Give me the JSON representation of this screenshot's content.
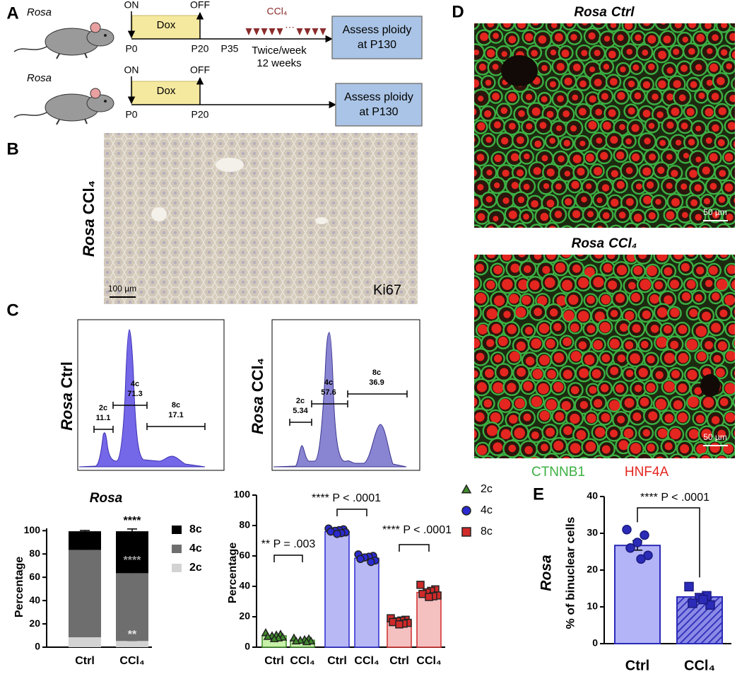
{
  "panel_labels": [
    "A",
    "B",
    "C",
    "D",
    "E"
  ],
  "schematic": {
    "rows": [
      {
        "strain": "Rosa",
        "on": "ON",
        "off": "OFF",
        "drug": "Dox",
        "timepoints": [
          "P0",
          "P20",
          "P35"
        ],
        "treatment": "CCl₄",
        "ellipsis": "···",
        "schedule": [
          "Twice/week",
          "12 weeks"
        ],
        "readout": [
          "Assess ploidy",
          "at P130"
        ]
      },
      {
        "strain": "Rosa",
        "on": "ON",
        "off": "OFF",
        "drug": "Dox",
        "timepoints": [
          "P0",
          "P20"
        ],
        "readout": [
          "Assess ploidy",
          "at P130"
        ]
      }
    ]
  },
  "ihc": {
    "label": {
      "genotype": "Rosa",
      "condition": "CCl₄"
    },
    "scale_bar": "100 µm",
    "stain": "Ki67"
  },
  "flow": [
    {
      "label": {
        "genotype": "Rosa",
        "condition": "Ctrl"
      },
      "gates": [
        {
          "name": "2c",
          "value": 11.1
        },
        {
          "name": "4c",
          "value": 71.3
        },
        {
          "name": "8c",
          "value": 17.1
        }
      ]
    },
    {
      "label": {
        "genotype": "Rosa",
        "condition": "CCl₄"
      },
      "gates": [
        {
          "name": "2c",
          "value": 5.34
        },
        {
          "name": "4c",
          "value": 57.6
        },
        {
          "name": "8c",
          "value": 36.9
        }
      ]
    }
  ],
  "if_images": {
    "panels": [
      {
        "title": {
          "genotype": "Rosa",
          "condition": "Ctrl"
        },
        "scale_bar": "50 µm"
      },
      {
        "title": {
          "genotype": "Rosa",
          "condition": "CCl₄"
        },
        "scale_bar": "50 µm"
      }
    ],
    "channels": [
      {
        "name": "CTNNB1",
        "color": "#3cb043"
      },
      {
        "name": "HNF4A",
        "color": "#e3261f"
      }
    ]
  },
  "chart_data": [
    {
      "type": "stacked_bar",
      "title": "Rosa",
      "y_label": "Percentage",
      "categories": [
        "Ctrl",
        "CCl₄"
      ],
      "series": [
        {
          "name": "2c",
          "color": "#d3d3d3",
          "values": [
            8.5,
            5.3
          ],
          "errors": [
            0.6,
            0.5
          ]
        },
        {
          "name": "4c",
          "color": "#6e6e6e",
          "values": [
            75,
            58.2
          ],
          "errors": [
            0.8,
            1
          ]
        },
        {
          "name": "8c",
          "color": "#000000",
          "values": [
            16,
            36
          ],
          "errors": [
            0.7,
            2
          ]
        }
      ],
      "annotations": [
        {
          "text": "****",
          "color": "#000000"
        },
        {
          "text": "****",
          "color": "#a0a0a0"
        },
        {
          "text": "**",
          "color": "#e6e6e6"
        }
      ],
      "ylim": [
        0,
        102
      ],
      "yticks": [
        0,
        20,
        40,
        60,
        80,
        100
      ]
    },
    {
      "type": "dot_bar",
      "y_label": "Percentage",
      "groups": [
        "Ctrl",
        "CCl₄"
      ],
      "series": [
        {
          "name": "2c",
          "color": "#c9f0a8",
          "edge": "#3f8a2a",
          "marker": "triangle",
          "values": [
            7.5,
            4.6
          ],
          "points": [
            [
              9.5,
              8.5,
              8,
              7.5,
              7,
              6.5,
              6,
              5.5
            ],
            [
              6,
              5.5,
              5,
              4.5,
              4,
              4,
              3.5
            ]
          ]
        },
        {
          "name": "4c",
          "color": "#b8b8f5",
          "edge": "#2a2ad0",
          "marker": "circle",
          "values": [
            76,
            58.5
          ],
          "points": [
            [
              78,
              77.5,
              77,
              76.5,
              76,
              75.5,
              75,
              74.5
            ],
            [
              61,
              60,
              59.5,
              59,
              58,
              57,
              56
            ]
          ]
        },
        {
          "name": "8c",
          "color": "#f5c0c0",
          "edge": "#d02a2a",
          "marker": "square",
          "values": [
            16.8,
            36
          ],
          "points": [
            [
              19,
              18,
              17.5,
              17,
              16.5,
              16,
              15.5,
              15
            ],
            [
              41,
              38,
              37,
              36,
              35,
              34,
              33.5,
              33
            ]
          ]
        }
      ],
      "comparisons": [
        "** P = .003",
        "**** P < .0001",
        "**** P < .0001"
      ],
      "ylim": [
        0,
        100
      ],
      "yticks": [
        0,
        20,
        40,
        60,
        80,
        100
      ]
    },
    {
      "type": "bar",
      "side_label": "Rosa",
      "y_label": "% of binuclear cells",
      "categories": [
        "Ctrl",
        "CCl₄"
      ],
      "values": [
        26.7,
        12.7
      ],
      "errors": [
        1.3,
        0.9
      ],
      "points": [
        [
          31,
          29.5,
          27.5,
          26,
          24,
          23
        ],
        [
          15.5,
          13,
          12.5,
          11,
          10.5,
          12
        ]
      ],
      "markers": [
        "circle",
        "square"
      ],
      "colors": [
        "#b3b3f7",
        "#2b2bb8"
      ],
      "hatch": [
        false,
        true
      ],
      "comparison": "**** P < .0001",
      "ylim": [
        0,
        40
      ],
      "yticks": [
        0,
        10,
        20,
        30,
        40
      ]
    }
  ]
}
